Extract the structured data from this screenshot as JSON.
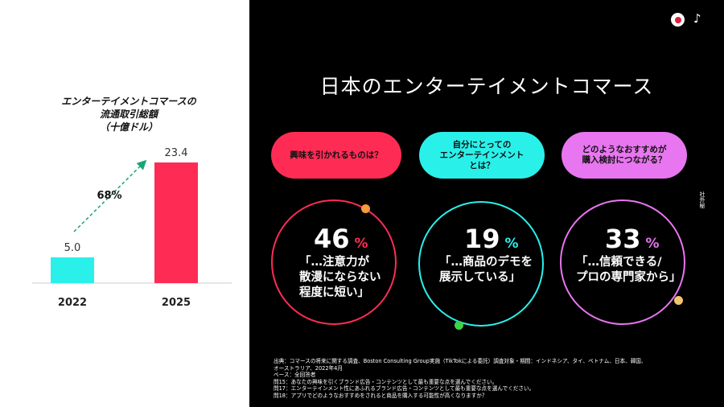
{
  "left": {
    "chart_title_lines": [
      "エンターテイメントコマースの",
      "流通取引総額",
      "（十億ドル）"
    ]
  },
  "chart_data": {
    "type": "bar",
    "title": "エンターテイメントコマースの流通取引総額（十億ドル）",
    "categories": [
      "2022",
      "2025"
    ],
    "values": [
      5.0,
      23.4
    ],
    "value_labels": [
      "5.0",
      "23.4"
    ],
    "growth_label": "68%",
    "colors": [
      "#2af0ea",
      "#fe2c55"
    ]
  },
  "right": {
    "title": "日本のエンターテイメントコマース",
    "side_label": "社外秘",
    "questions": [
      {
        "lines": [
          "興味を引かれるものは？"
        ],
        "color": "#fe2c55"
      },
      {
        "lines": [
          "自分にとっての",
          "エンターテインメント",
          "とは？"
        ],
        "color": "#2af0ea"
      },
      {
        "lines": [
          "どのようなおすすめが",
          "購入検討につながる？"
        ],
        "color": "#e876f0"
      }
    ],
    "stats": [
      {
        "value": "46",
        "sign": "%",
        "sign_color": "#fe2c55",
        "ring_color": "#fe2c55",
        "dot_color": "#f79a3c",
        "quote": [
          "「…注意力が",
          "散漫にならない",
          "程度に短い」"
        ]
      },
      {
        "value": "19",
        "sign": "%",
        "sign_color": "#2af0ea",
        "ring_color": "#2af0ea",
        "dot_color": "#3ed24a",
        "quote": [
          "「…商品のデモを",
          "展示している」"
        ]
      },
      {
        "value": "33",
        "sign": "%",
        "sign_color": "#e876f0",
        "ring_color": "#e876f0",
        "dot_color": "#f2c46d",
        "quote": [
          "「…信頼できる/",
          "プロの専門家から」"
        ]
      }
    ],
    "notes": [
      "出典：コマースの将来に関する調査、Boston Consulting Group実施（TikTokによる委託）調査対象・期間：インドネシア、タイ、ベトナム、日本、韓国、",
      "オーストラリア、2022年4月",
      "ベース：全回答者",
      "問15：あなたの興味を引くブランド広告・コンテンツとして最も重要な点を選んでください。",
      "問17：エンターテインメント性にあふれるブランド広告・コンテンツとして最も重要な点を選んでください。",
      "問18：アプリでどのようなおすすめをされると商品を購入する可能性が高くなりますか？"
    ]
  }
}
